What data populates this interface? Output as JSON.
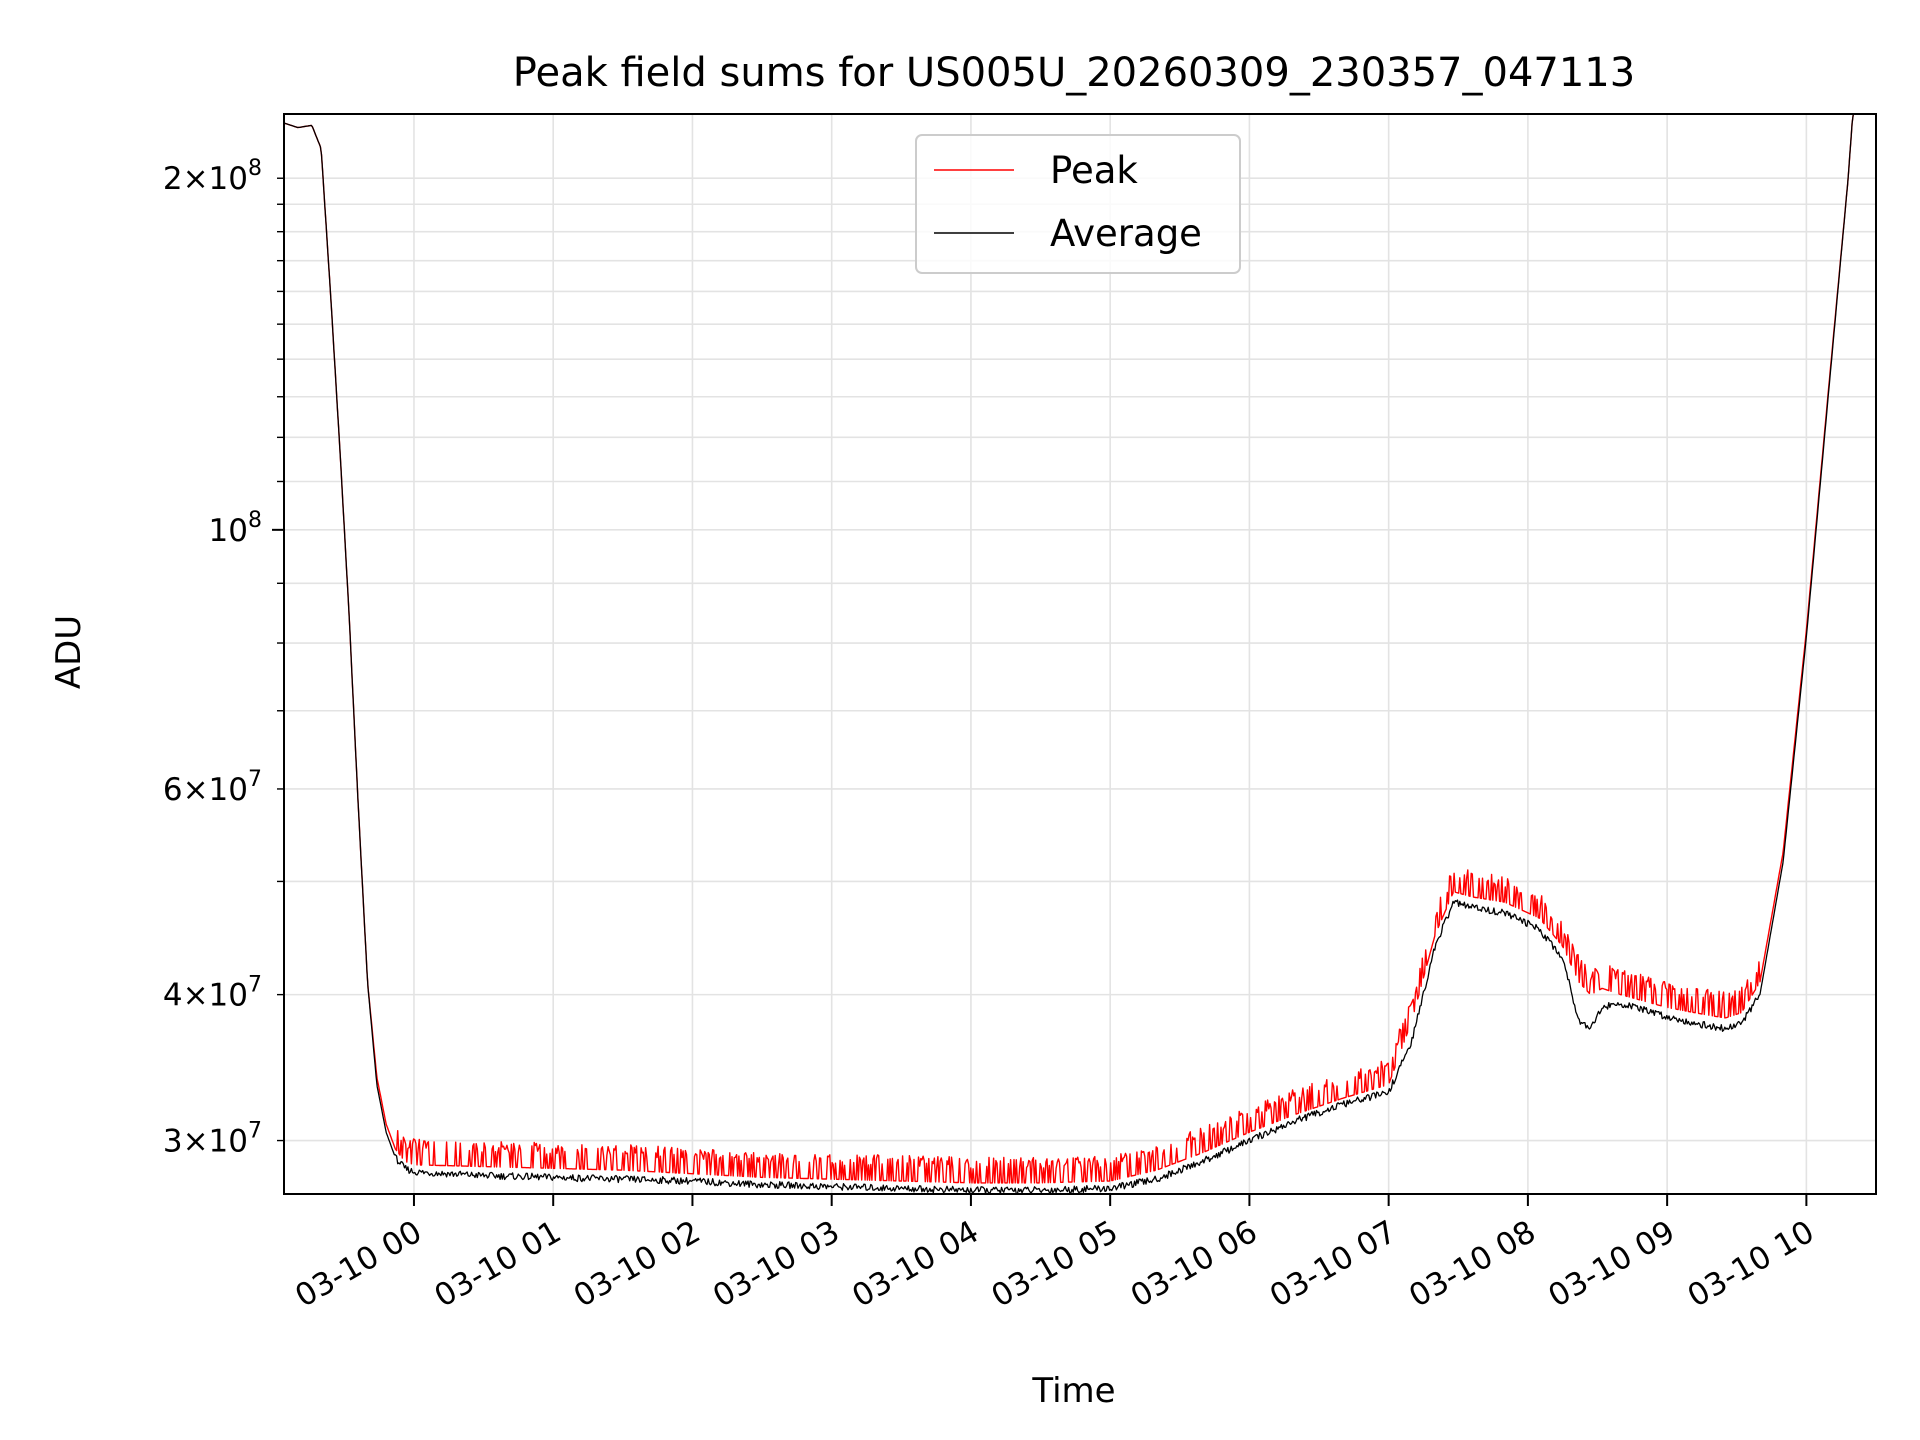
{
  "chart_data": {
    "type": "line",
    "title": "Peak field sums for US005U_20260309_230357_047113",
    "xlabel": "Time",
    "ylabel": "ADU",
    "y_scale": "log",
    "ylim": [
      27000000,
      227000000
    ],
    "xlim": [
      "2026-03-09 23:04",
      "2026-03-10 10:30"
    ],
    "grid": true,
    "legend_position": "top-center",
    "x_tick_labels": [
      "03-10 00",
      "03-10 01",
      "03-10 02",
      "03-10 03",
      "03-10 04",
      "03-10 05",
      "03-10 06",
      "03-10 07",
      "03-10 08",
      "03-10 09",
      "03-10 10"
    ],
    "x_ticks": [
      "2026-03-10 00:00",
      "2026-03-10 01:00",
      "2026-03-10 02:00",
      "2026-03-10 03:00",
      "2026-03-10 04:00",
      "2026-03-10 05:00",
      "2026-03-10 06:00",
      "2026-03-10 07:00",
      "2026-03-10 08:00",
      "2026-03-10 09:00",
      "2026-03-10 10:00"
    ],
    "y_major_ticks": [
      100000000
    ],
    "y_major_labels": [
      "10^8"
    ],
    "y_minor_ticks": [
      30000000,
      40000000,
      60000000,
      200000000
    ],
    "y_minor_labels": [
      "3×10^7",
      "4×10^7",
      "6×10^7",
      "2×10^8"
    ],
    "series": [
      {
        "name": "Peak",
        "color": "#ff0000",
        "x": [
          "2026-03-09 23:04",
          "2026-03-09 23:10",
          "2026-03-09 23:16",
          "2026-03-09 23:20",
          "2026-03-09 23:24",
          "2026-03-09 23:28",
          "2026-03-09 23:32",
          "2026-03-09 23:36",
          "2026-03-09 23:40",
          "2026-03-09 23:44",
          "2026-03-09 23:48",
          "2026-03-09 23:52",
          "2026-03-09 23:56",
          "2026-03-10 00:00",
          "2026-03-10 00:30",
          "2026-03-10 01:00",
          "2026-03-10 01:30",
          "2026-03-10 02:00",
          "2026-03-10 02:30",
          "2026-03-10 03:00",
          "2026-03-10 03:30",
          "2026-03-10 04:00",
          "2026-03-10 04:30",
          "2026-03-10 05:00",
          "2026-03-10 05:20",
          "2026-03-10 05:40",
          "2026-03-10 06:00",
          "2026-03-10 06:20",
          "2026-03-10 06:40",
          "2026-03-10 07:00",
          "2026-03-10 07:10",
          "2026-03-10 07:20",
          "2026-03-10 07:28",
          "2026-03-10 07:36",
          "2026-03-10 07:50",
          "2026-03-10 08:05",
          "2026-03-10 08:15",
          "2026-03-10 08:22",
          "2026-03-10 08:27",
          "2026-03-10 08:32",
          "2026-03-10 08:40",
          "2026-03-10 09:00",
          "2026-03-10 09:15",
          "2026-03-10 09:25",
          "2026-03-10 09:32",
          "2026-03-10 09:40",
          "2026-03-10 09:50",
          "2026-03-10 10:00",
          "2026-03-10 10:10",
          "2026-03-10 10:18",
          "2026-03-10 10:20",
          "2026-03-10 10:30"
        ],
        "y": [
          223000000,
          221000000,
          222000000,
          212000000,
          160000000,
          118000000,
          85000000,
          58000000,
          41000000,
          34000000,
          31000000,
          29500000,
          28800000,
          28600000,
          28500000,
          28400000,
          28300000,
          28100000,
          27900000,
          27800000,
          27700000,
          27600000,
          27600000,
          27700000,
          28300000,
          29300000,
          30500000,
          31600000,
          32600000,
          33500000,
          38000000,
          45000000,
          49000000,
          48500000,
          48000000,
          46500000,
          44000000,
          41000000,
          40000000,
          40500000,
          40000000,
          39000000,
          38500000,
          38200000,
          38600000,
          41000000,
          53000000,
          82000000,
          135000000,
          200000000,
          227000000,
          227000000
        ]
      },
      {
        "name": "Average",
        "color": "#000000",
        "x": [
          "2026-03-09 23:04",
          "2026-03-09 23:10",
          "2026-03-09 23:16",
          "2026-03-09 23:20",
          "2026-03-09 23:24",
          "2026-03-09 23:28",
          "2026-03-09 23:32",
          "2026-03-09 23:36",
          "2026-03-09 23:40",
          "2026-03-09 23:44",
          "2026-03-09 23:48",
          "2026-03-09 23:52",
          "2026-03-09 23:56",
          "2026-03-10 00:00",
          "2026-03-10 00:30",
          "2026-03-10 01:00",
          "2026-03-10 01:30",
          "2026-03-10 02:00",
          "2026-03-10 02:30",
          "2026-03-10 03:00",
          "2026-03-10 03:30",
          "2026-03-10 04:00",
          "2026-03-10 04:30",
          "2026-03-10 05:00",
          "2026-03-10 05:20",
          "2026-03-10 05:40",
          "2026-03-10 06:00",
          "2026-03-10 06:20",
          "2026-03-10 06:40",
          "2026-03-10 07:00",
          "2026-03-10 07:10",
          "2026-03-10 07:20",
          "2026-03-10 07:28",
          "2026-03-10 07:36",
          "2026-03-10 07:50",
          "2026-03-10 08:05",
          "2026-03-10 08:15",
          "2026-03-10 08:22",
          "2026-03-10 08:27",
          "2026-03-10 08:32",
          "2026-03-10 08:40",
          "2026-03-10 09:00",
          "2026-03-10 09:15",
          "2026-03-10 09:25",
          "2026-03-10 09:32",
          "2026-03-10 09:40",
          "2026-03-10 09:50",
          "2026-03-10 10:00",
          "2026-03-10 10:10",
          "2026-03-10 10:18",
          "2026-03-10 10:20",
          "2026-03-10 10:30"
        ],
        "y": [
          223000000,
          221000000,
          222000000,
          212000000,
          160000000,
          118000000,
          85000000,
          58000000,
          41000000,
          33500000,
          30500000,
          29000000,
          28400000,
          28200000,
          28000000,
          27900000,
          27800000,
          27700000,
          27500000,
          27400000,
          27300000,
          27200000,
          27200000,
          27300000,
          27800000,
          28800000,
          30000000,
          31200000,
          32200000,
          33000000,
          36500000,
          44000000,
          48000000,
          47500000,
          47000000,
          45500000,
          43000000,
          38000000,
          37500000,
          39000000,
          39300000,
          38300000,
          37700000,
          37400000,
          37800000,
          40000000,
          52000000,
          81000000,
          134000000,
          200000000,
          227000000,
          227000000
        ]
      }
    ]
  }
}
